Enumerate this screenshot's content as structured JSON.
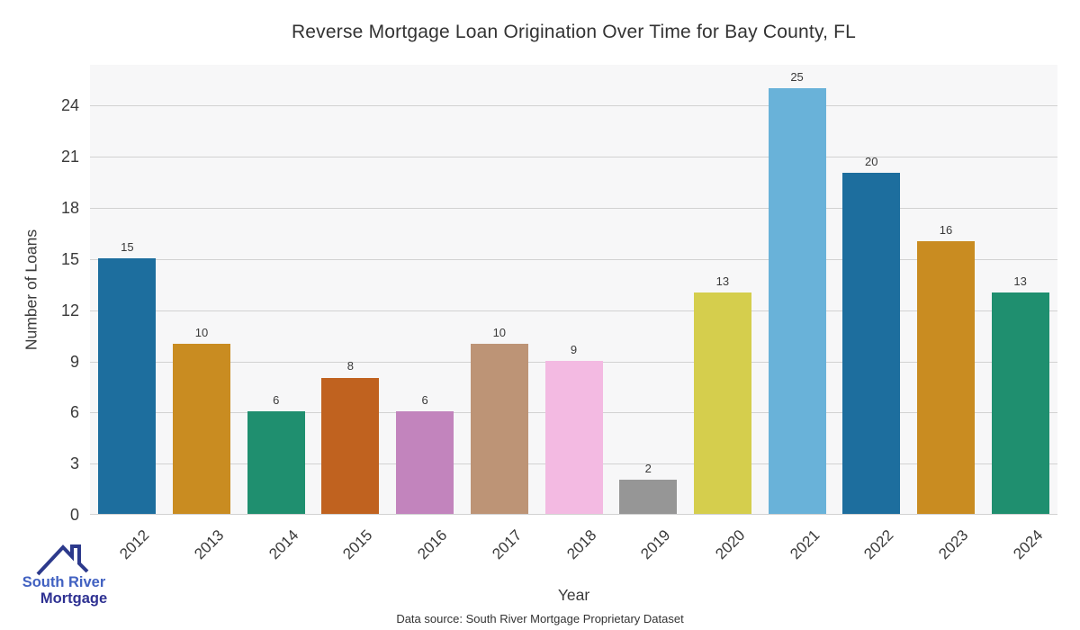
{
  "chart_data": {
    "type": "bar",
    "title": "Reverse Mortgage Loan Origination Over Time for Bay County, FL",
    "xlabel": "Year",
    "ylabel": "Number of Loans",
    "categories": [
      "2012",
      "2013",
      "2014",
      "2015",
      "2016",
      "2017",
      "2018",
      "2019",
      "2020",
      "2021",
      "2022",
      "2023",
      "2024"
    ],
    "values": [
      15,
      10,
      6,
      8,
      6,
      10,
      9,
      2,
      13,
      25,
      20,
      16,
      13
    ],
    "bar_colors": [
      "#1d6e9e",
      "#c98c21",
      "#1f8f6f",
      "#c0621f",
      "#c284bd",
      "#bd9476",
      "#f3bae2",
      "#969696",
      "#d5ce4d",
      "#69b2d9",
      "#1d6e9e",
      "#c98c21",
      "#1f8f6f"
    ],
    "ylim": [
      0,
      26.4
    ],
    "yticks": [
      0,
      3,
      6,
      9,
      12,
      15,
      18,
      21,
      24
    ],
    "grid": true,
    "legend": "none",
    "value_labels": true
  },
  "colors": {
    "plot_background": "#f7f7f8",
    "gridline": "#d2d2d2",
    "axis_line": "#d2d2d2",
    "text": "#3a3a3a"
  },
  "footer": {
    "data_source": "Data source: South River Mortgage Proprietary Dataset"
  },
  "logo": {
    "line1": "South River",
    "line2": "Mortgage",
    "line1_color": "#4161c1",
    "line2_color": "#2e3192",
    "roof_color": "#2d3a8c"
  }
}
